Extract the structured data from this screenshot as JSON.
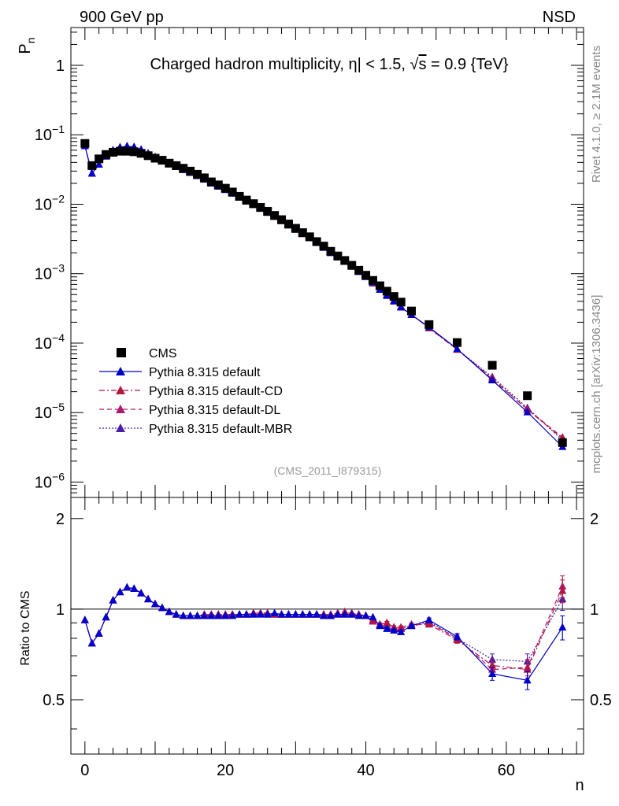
{
  "header": {
    "left_label": "900 GeV pp",
    "right_label": "NSD"
  },
  "side_labels": {
    "rivet": "Rivet 4.1.0, ≥ 2.1M events",
    "mcplots": "mcplots.cern.ch [arXiv:1306.3436]"
  },
  "chart_data": [
    {
      "type": "scatter",
      "panel": "main",
      "title": "Charged hadron multiplicity, η| < 1.5, √s = 0.9 {TeV}",
      "title_parts": {
        "prefix": "Charged hadron multiplicity, ",
        "eta": "η",
        "mid": "| < 1.5, ",
        "sqrt": "√",
        "s": "s",
        "suffix": " = 0.9 {TeV}"
      },
      "ylabel": "P",
      "ylabel_sub": "n",
      "xlabel": "n",
      "yscale": "log",
      "ylim": [
        6e-07,
        3.5
      ],
      "xlim": [
        -2,
        71
      ],
      "analysis_tag": "(CMS_2011_I879315)",
      "y_ticks": [
        {
          "value": 1,
          "label": "1"
        },
        {
          "value": 0.1,
          "base": "10",
          "exp": "−1"
        },
        {
          "value": 0.01,
          "base": "10",
          "exp": "−2"
        },
        {
          "value": 0.001,
          "base": "10",
          "exp": "−3"
        },
        {
          "value": 0.0001,
          "base": "10",
          "exp": "−4"
        },
        {
          "value": 1e-05,
          "base": "10",
          "exp": "−5"
        },
        {
          "value": 1e-06,
          "base": "10",
          "exp": "−6"
        }
      ],
      "legend": [
        {
          "label": "CMS",
          "marker": "square",
          "color": "#000000",
          "dash": "none"
        },
        {
          "label": "Pythia 8.315 default",
          "marker": "triangle",
          "color": "#0000cc",
          "dash": "solid"
        },
        {
          "label": "Pythia 8.315 default-CD",
          "marker": "triangle",
          "color": "#b3163f",
          "dash": "dashdot"
        },
        {
          "label": "Pythia 8.315 default-DL",
          "marker": "triangle",
          "color": "#b0186a",
          "dash": "dashed"
        },
        {
          "label": "Pythia 8.315 default-MBR",
          "marker": "triangle",
          "color": "#4a1fa8",
          "dash": "dotted"
        }
      ],
      "series": [
        {
          "name": "CMS",
          "x": [
            0,
            1,
            2,
            3,
            4,
            5,
            6,
            7,
            8,
            9,
            10,
            11,
            12,
            13,
            14,
            15,
            16,
            17,
            18,
            19,
            20,
            21,
            22,
            23,
            24,
            25,
            26,
            27,
            28,
            29,
            30,
            31,
            32,
            33,
            34,
            35,
            36,
            37,
            38,
            39,
            40,
            41,
            42,
            43,
            44,
            45,
            46.5,
            49,
            53,
            58,
            63,
            68
          ],
          "y": [
            0.075,
            0.036,
            0.045,
            0.052,
            0.056,
            0.058,
            0.058,
            0.057,
            0.054,
            0.05,
            0.046,
            0.043,
            0.039,
            0.036,
            0.033,
            0.03,
            0.027,
            0.024,
            0.021,
            0.019,
            0.017,
            0.015,
            0.013,
            0.0115,
            0.0102,
            0.009,
            0.0079,
            0.0069,
            0.006,
            0.0052,
            0.0045,
            0.0039,
            0.0034,
            0.0029,
            0.0025,
            0.0021,
            0.0018,
            0.00155,
            0.00132,
            0.00112,
            0.00095,
            0.0008,
            0.00067,
            0.00056,
            0.00047,
            0.00039,
            0.00029,
            0.000185,
            0.000102,
            4.8e-05,
            1.75e-05,
            3.7e-06
          ]
        }
      ]
    },
    {
      "type": "line",
      "panel": "ratio",
      "ylabel": "Ratio to CMS",
      "xlabel": "n",
      "ylim": [
        0.33,
        2.35
      ],
      "xlim": [
        -2,
        71
      ],
      "reference_line": 1,
      "y_ticks": [
        0.5,
        1,
        2
      ],
      "x_ticks": [
        0,
        20,
        40,
        60
      ],
      "x": [
        0,
        1,
        2,
        3,
        4,
        5,
        6,
        7,
        8,
        9,
        10,
        11,
        12,
        13,
        14,
        15,
        16,
        17,
        18,
        19,
        20,
        21,
        22,
        23,
        24,
        25,
        26,
        27,
        28,
        29,
        30,
        31,
        32,
        33,
        34,
        35,
        36,
        37,
        38,
        39,
        40,
        41,
        42,
        43,
        44,
        45,
        46.5,
        49,
        53,
        58,
        63,
        68
      ],
      "series": [
        {
          "name": "Pythia 8.315 default",
          "values": [
            0.92,
            0.77,
            0.83,
            0.94,
            1.07,
            1.14,
            1.18,
            1.17,
            1.13,
            1.08,
            1.04,
            1.01,
            0.98,
            0.96,
            0.95,
            0.95,
            0.95,
            0.95,
            0.95,
            0.95,
            0.95,
            0.95,
            0.96,
            0.96,
            0.96,
            0.96,
            0.96,
            0.97,
            0.96,
            0.96,
            0.96,
            0.96,
            0.96,
            0.96,
            0.95,
            0.95,
            0.96,
            0.96,
            0.96,
            0.95,
            0.95,
            0.94,
            0.88,
            0.86,
            0.85,
            0.84,
            0.88,
            0.92,
            0.81,
            0.61,
            0.58,
            0.87
          ],
          "errors": [
            0,
            0,
            0,
            0,
            0,
            0,
            0,
            0,
            0,
            0,
            0,
            0,
            0,
            0,
            0,
            0,
            0,
            0,
            0,
            0,
            0,
            0,
            0,
            0,
            0,
            0,
            0,
            0,
            0,
            0,
            0,
            0,
            0,
            0,
            0,
            0,
            0,
            0,
            0,
            0,
            0,
            0,
            0.01,
            0.01,
            0.01,
            0.01,
            0.01,
            0.015,
            0.02,
            0.03,
            0.04,
            0.08
          ]
        },
        {
          "name": "Pythia 8.315 default-CD",
          "values": [
            0.92,
            0.77,
            0.83,
            0.94,
            1.07,
            1.14,
            1.18,
            1.17,
            1.13,
            1.08,
            1.04,
            1.01,
            0.98,
            0.96,
            0.95,
            0.95,
            0.95,
            0.96,
            0.96,
            0.96,
            0.96,
            0.96,
            0.96,
            0.96,
            0.97,
            0.97,
            0.97,
            0.96,
            0.96,
            0.96,
            0.96,
            0.96,
            0.96,
            0.96,
            0.96,
            0.96,
            0.97,
            0.97,
            0.97,
            0.96,
            0.95,
            0.92,
            0.89,
            0.9,
            0.87,
            0.87,
            0.89,
            0.89,
            0.79,
            0.65,
            0.63,
            1.15
          ],
          "errors": [
            0,
            0,
            0,
            0,
            0,
            0,
            0,
            0,
            0,
            0,
            0,
            0,
            0,
            0,
            0,
            0,
            0,
            0,
            0,
            0,
            0,
            0,
            0,
            0,
            0,
            0,
            0,
            0,
            0,
            0,
            0,
            0,
            0,
            0,
            0,
            0,
            0,
            0,
            0,
            0,
            0,
            0,
            0.01,
            0.01,
            0.01,
            0.01,
            0.01,
            0.015,
            0.02,
            0.03,
            0.04,
            0.1
          ]
        },
        {
          "name": "Pythia 8.315 default-DL",
          "values": [
            0.92,
            0.77,
            0.83,
            0.94,
            1.07,
            1.14,
            1.18,
            1.17,
            1.13,
            1.08,
            1.04,
            1.01,
            0.98,
            0.96,
            0.95,
            0.95,
            0.95,
            0.96,
            0.96,
            0.96,
            0.96,
            0.96,
            0.96,
            0.96,
            0.97,
            0.97,
            0.97,
            0.96,
            0.96,
            0.96,
            0.96,
            0.96,
            0.96,
            0.96,
            0.96,
            0.96,
            0.97,
            0.98,
            0.97,
            0.96,
            0.95,
            0.91,
            0.89,
            0.9,
            0.87,
            0.86,
            0.88,
            0.9,
            0.8,
            0.63,
            0.64,
            1.19
          ],
          "errors": [
            0,
            0,
            0,
            0,
            0,
            0,
            0,
            0,
            0,
            0,
            0,
            0,
            0,
            0,
            0,
            0,
            0,
            0,
            0,
            0,
            0,
            0,
            0,
            0,
            0,
            0,
            0,
            0,
            0,
            0,
            0,
            0,
            0,
            0,
            0,
            0,
            0,
            0,
            0,
            0,
            0,
            0,
            0.01,
            0.01,
            0.01,
            0.01,
            0.01,
            0.015,
            0.02,
            0.03,
            0.04,
            0.1
          ]
        },
        {
          "name": "Pythia 8.315 default-MBR",
          "values": [
            0.92,
            0.77,
            0.83,
            0.94,
            1.07,
            1.14,
            1.18,
            1.17,
            1.13,
            1.08,
            1.04,
            1.01,
            0.98,
            0.96,
            0.95,
            0.95,
            0.95,
            0.95,
            0.95,
            0.95,
            0.95,
            0.96,
            0.96,
            0.96,
            0.96,
            0.97,
            0.96,
            0.96,
            0.96,
            0.96,
            0.96,
            0.96,
            0.96,
            0.96,
            0.95,
            0.95,
            0.96,
            0.96,
            0.96,
            0.96,
            0.95,
            0.91,
            0.88,
            0.88,
            0.86,
            0.86,
            0.88,
            0.91,
            0.8,
            0.68,
            0.67,
            1.08
          ],
          "errors": [
            0,
            0,
            0,
            0,
            0,
            0,
            0,
            0,
            0,
            0,
            0,
            0,
            0,
            0,
            0,
            0,
            0,
            0,
            0,
            0,
            0,
            0,
            0,
            0,
            0,
            0,
            0,
            0,
            0,
            0,
            0,
            0,
            0,
            0,
            0,
            0,
            0,
            0,
            0,
            0,
            0,
            0,
            0.01,
            0.01,
            0.01,
            0.01,
            0.01,
            0.015,
            0.02,
            0.03,
            0.04,
            0.09
          ]
        }
      ]
    }
  ]
}
